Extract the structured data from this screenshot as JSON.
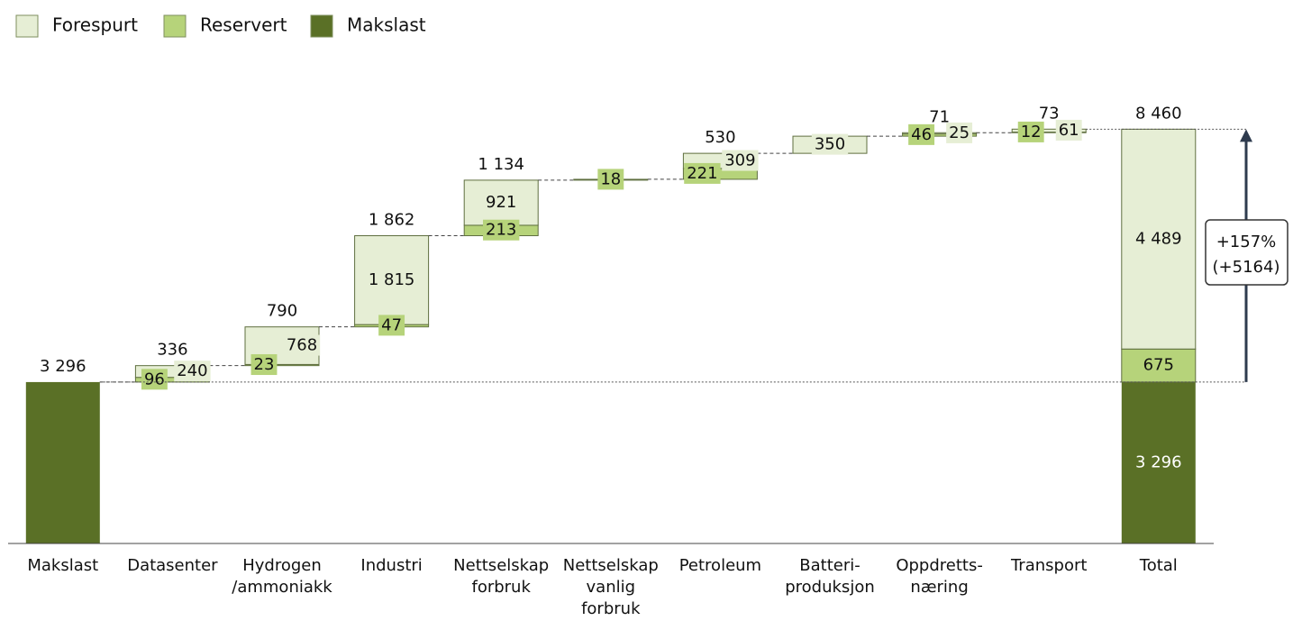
{
  "chart_data": {
    "type": "waterfall",
    "legend": "top-left",
    "categories": [
      [
        "Makslast"
      ],
      [
        "Datasenter"
      ],
      [
        "Hydrogen",
        "/ammoniakk"
      ],
      [
        "Industri"
      ],
      [
        "Nettselskap",
        "forbruk"
      ],
      [
        "Nettselskap",
        "vanlig",
        "forbruk"
      ],
      [
        "Petroleum"
      ],
      [
        "Batteri-",
        "produksjon"
      ],
      [
        "Oppdretts-",
        "næring"
      ],
      [
        "Transport"
      ],
      [
        "Total"
      ]
    ],
    "series": [
      {
        "name": "Forespurt",
        "color": "#e6eed5",
        "values": [
          null,
          240,
          768,
          1815,
          921,
          null,
          309,
          350,
          25,
          61,
          4489
        ],
        "value_labels": [
          null,
          "240",
          "768",
          "1 815",
          "921",
          null,
          "309",
          "350",
          "25",
          "61",
          "4 489"
        ]
      },
      {
        "name": "Reservert",
        "color": "#b6d37a",
        "values": [
          null,
          96,
          23,
          47,
          213,
          18,
          221,
          null,
          46,
          12,
          675
        ],
        "value_labels": [
          null,
          "96",
          "23",
          "47",
          "213",
          "18",
          "221",
          null,
          "46",
          "12",
          "675"
        ]
      },
      {
        "name": "Makslast",
        "color": "#5a7026",
        "values": [
          3296,
          null,
          null,
          null,
          null,
          null,
          null,
          null,
          null,
          null,
          3296
        ],
        "value_labels": [
          null,
          null,
          null,
          null,
          null,
          null,
          null,
          null,
          null,
          null,
          "3 296"
        ]
      }
    ],
    "totals": {
      "values": [
        3296,
        336,
        790,
        1862,
        1134,
        null,
        530,
        null,
        71,
        73,
        8460
      ],
      "value_labels": [
        "3 296",
        "336",
        "790",
        "1 862",
        "1 134",
        null,
        "530",
        null,
        "71",
        "73",
        "8 460"
      ]
    },
    "ylim": [
      0,
      9000
    ],
    "annotation": [
      "+157%",
      "(+5164)"
    ]
  }
}
